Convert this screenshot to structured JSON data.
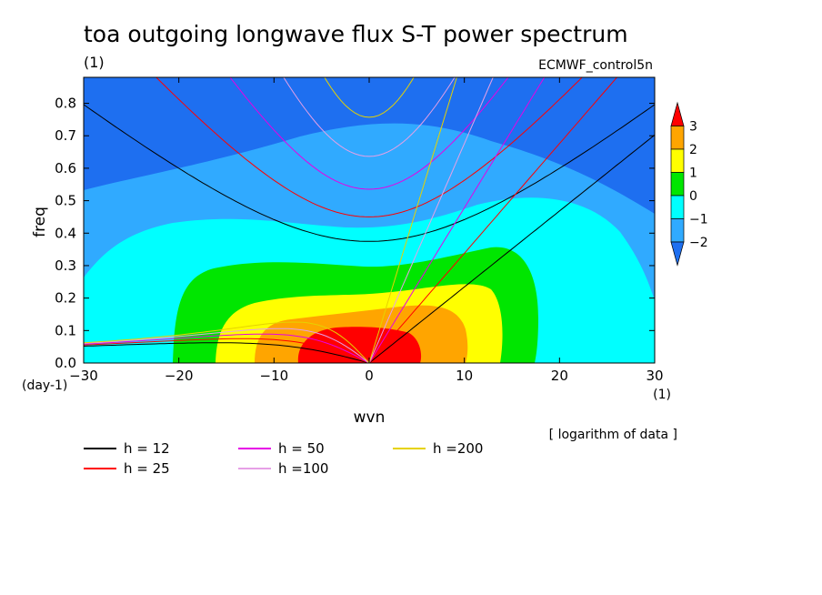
{
  "chart_data": {
    "type": "heatmap",
    "title": "toa outgoing longwave flux S-T power spectrum",
    "subtitle_left": "(1)",
    "subtitle_right": "ECMWF_control5n",
    "xlabel": "wvn",
    "ylabel": "freq",
    "x_unit": "(1)",
    "y_unit": "(day-1)",
    "xlim": [
      -30,
      30
    ],
    "ylim": [
      0,
      0.88
    ],
    "xticks": [
      -30,
      -20,
      -10,
      0,
      10,
      20,
      30
    ],
    "yticks": [
      0.0,
      0.1,
      0.2,
      0.3,
      0.4,
      0.5,
      0.6,
      0.7,
      0.8
    ],
    "ytick_labels": [
      "0.0",
      "0.1",
      "0.2",
      "0.3",
      "0.4",
      "0.5",
      "0.6",
      "0.7",
      "0.8"
    ],
    "xtick_labels": [
      "-30",
      "-20",
      "-10",
      "0",
      "10",
      "20",
      "30"
    ],
    "note": "[ logarithm of data ]",
    "colorbar": {
      "levels": [
        -2,
        -1,
        0,
        1,
        2,
        3
      ],
      "labels": [
        "-2",
        "-1",
        "0",
        "1",
        "2",
        "3"
      ],
      "colors": [
        "#1e6ff0",
        "#30aaff",
        "#00ffff",
        "#00e600",
        "#ffff00",
        "#ffa500",
        "#ff0000"
      ]
    },
    "contour_bands": [
      {
        "level": "< -2",
        "color": "#1e6ff0"
      },
      {
        "level": "-2 to -1",
        "color": "#30aaff"
      },
      {
        "level": "-1 to 0",
        "color": "#00ffff"
      },
      {
        "level": "0 to 1",
        "color": "#00e600"
      },
      {
        "level": "1 to 2",
        "color": "#ffff00"
      },
      {
        "level": "2 to 3",
        "color": "#ffa500"
      },
      {
        "level": "> 3",
        "color": "#ff0000"
      }
    ],
    "dispersion_curves": [
      {
        "label": "h = 12",
        "color": "#000000"
      },
      {
        "label": "h = 25",
        "color": "#ff0000"
      },
      {
        "label": "h = 50",
        "color": "#e600e6"
      },
      {
        "label": "h =100",
        "color": "#e6a0e6"
      },
      {
        "label": "h =200",
        "color": "#e6d200"
      }
    ]
  }
}
